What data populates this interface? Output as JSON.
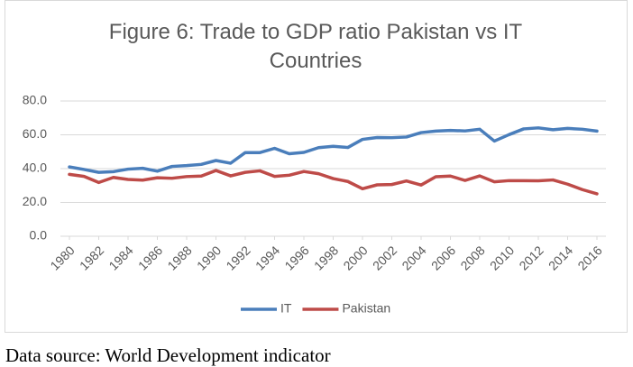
{
  "chart_data": {
    "type": "line",
    "title": "Figure 6: Trade to GDP ratio Pakistan vs IT Countries",
    "x": [
      1980,
      1981,
      1982,
      1983,
      1984,
      1985,
      1986,
      1987,
      1988,
      1989,
      1990,
      1991,
      1992,
      1993,
      1994,
      1995,
      1996,
      1997,
      1998,
      1999,
      2000,
      2001,
      2002,
      2003,
      2004,
      2005,
      2006,
      2007,
      2008,
      2009,
      2010,
      2011,
      2012,
      2013,
      2014,
      2015,
      2016
    ],
    "xlim": [
      1980,
      2016
    ],
    "xticks": [
      1980,
      1982,
      1984,
      1986,
      1988,
      1990,
      1992,
      1994,
      1996,
      1998,
      2000,
      2002,
      2004,
      2006,
      2008,
      2010,
      2012,
      2014,
      2016
    ],
    "ylim": [
      0,
      80
    ],
    "yticks": [
      {
        "value": 0,
        "label": "0.0"
      },
      {
        "value": 20,
        "label": "20.0"
      },
      {
        "value": 40,
        "label": "40.0"
      },
      {
        "value": 60,
        "label": "60.0"
      },
      {
        "value": 80,
        "label": "80.0"
      }
    ],
    "grid": true,
    "legend": "bottom",
    "series": [
      {
        "name": "IT",
        "color": "#4a7ebb",
        "values": [
          41,
          39.5,
          37.8,
          38.2,
          39.7,
          40.2,
          38.5,
          41.3,
          41.8,
          42.5,
          44.8,
          43.2,
          49.5,
          49.5,
          52,
          48.8,
          49.6,
          52.4,
          53.2,
          52.5,
          57.3,
          58.4,
          58.3,
          58.7,
          61.3,
          62.2,
          62.6,
          62.3,
          63.3,
          56.3,
          60.1,
          63.5,
          64.1,
          63,
          63.8,
          63.3,
          62.2
        ]
      },
      {
        "name": "Pakistan",
        "color": "#be4b48",
        "values": [
          36.6,
          35.4,
          31.8,
          34.8,
          33.6,
          33.2,
          34.6,
          34.3,
          35.3,
          35.6,
          38.9,
          35.7,
          37.8,
          38.7,
          35.4,
          36.1,
          38.3,
          37,
          34.1,
          32.4,
          28.1,
          30.4,
          30.6,
          32.7,
          30.3,
          35.2,
          35.6,
          33,
          35.7,
          32.2,
          32.9,
          32.9,
          32.8,
          33.3,
          30.8,
          27.6,
          25.1
        ]
      }
    ]
  },
  "caption": "Data source: World Development indicator"
}
